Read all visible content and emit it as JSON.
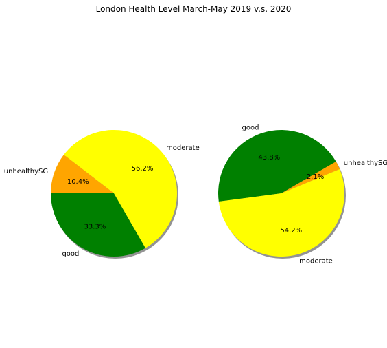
{
  "figure": {
    "title": "London Health Level March-May 2019 v.s. 2020"
  },
  "chart_data": [
    {
      "type": "pie",
      "slices": [
        {
          "label": "good",
          "percent": 33.3,
          "percent_label": "33.3%",
          "color": "#008000"
        },
        {
          "label": "moderate",
          "percent": 56.2,
          "percent_label": "56.2%",
          "color": "#ffff00"
        },
        {
          "label": "unhealthySG",
          "percent": 10.4,
          "percent_label": "10.4%",
          "color": "#ffa500"
        }
      ],
      "shadow": true
    },
    {
      "type": "pie",
      "slices": [
        {
          "label": "good",
          "percent": 43.8,
          "percent_label": "43.8%",
          "color": "#008000"
        },
        {
          "label": "moderate",
          "percent": 54.2,
          "percent_label": "54.2%",
          "color": "#ffff00"
        },
        {
          "label": "unhealthySG",
          "percent": 2.1,
          "percent_label": "2.1%",
          "color": "#ffa500"
        }
      ],
      "shadow": true
    }
  ]
}
